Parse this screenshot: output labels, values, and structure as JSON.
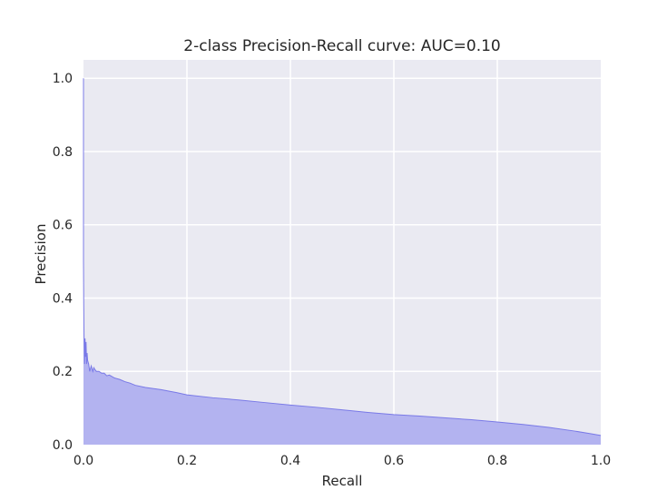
{
  "chart_data": {
    "type": "area",
    "title": "2-class Precision-Recall curve: AUC=0.10",
    "xlabel": "Recall",
    "ylabel": "Precision",
    "xlim": [
      0.0,
      1.0
    ],
    "ylim": [
      0.0,
      1.05
    ],
    "xticks": [
      0.0,
      0.2,
      0.4,
      0.6,
      0.8,
      1.0
    ],
    "yticks": [
      0.0,
      0.2,
      0.4,
      0.6,
      0.8,
      1.0
    ],
    "xtick_labels": [
      "0.0",
      "0.2",
      "0.4",
      "0.6",
      "0.8",
      "1.0"
    ],
    "ytick_labels": [
      "0.0",
      "0.2",
      "0.4",
      "0.6",
      "0.8",
      "1.0"
    ],
    "grid": true,
    "background_color": "#eaeaf2",
    "grid_color": "#ffffff",
    "fill_color": "#b3b3f0",
    "line_color": "#7070e6",
    "series": [
      {
        "x": [
          0.0,
          0.0,
          0.0005,
          0.001,
          0.002,
          0.003,
          0.004,
          0.005,
          0.006,
          0.007,
          0.008,
          0.01,
          0.012,
          0.015,
          0.018,
          0.02,
          0.022,
          0.025,
          0.03,
          0.035,
          0.04,
          0.045,
          0.05,
          0.06,
          0.07,
          0.08,
          0.09,
          0.1,
          0.12,
          0.15,
          0.18,
          0.2,
          0.25,
          0.3,
          0.35,
          0.4,
          0.45,
          0.5,
          0.55,
          0.6,
          0.65,
          0.7,
          0.75,
          0.8,
          0.85,
          0.9,
          0.95,
          0.98,
          1.0
        ],
        "y": [
          1.0,
          0.5,
          0.38,
          0.3,
          0.22,
          0.29,
          0.24,
          0.28,
          0.22,
          0.25,
          0.23,
          0.22,
          0.2,
          0.215,
          0.2,
          0.21,
          0.205,
          0.2,
          0.2,
          0.195,
          0.195,
          0.188,
          0.19,
          0.182,
          0.178,
          0.172,
          0.168,
          0.162,
          0.156,
          0.15,
          0.142,
          0.136,
          0.128,
          0.122,
          0.115,
          0.108,
          0.102,
          0.095,
          0.088,
          0.082,
          0.078,
          0.073,
          0.068,
          0.062,
          0.055,
          0.047,
          0.037,
          0.03,
          0.025
        ]
      }
    ]
  }
}
